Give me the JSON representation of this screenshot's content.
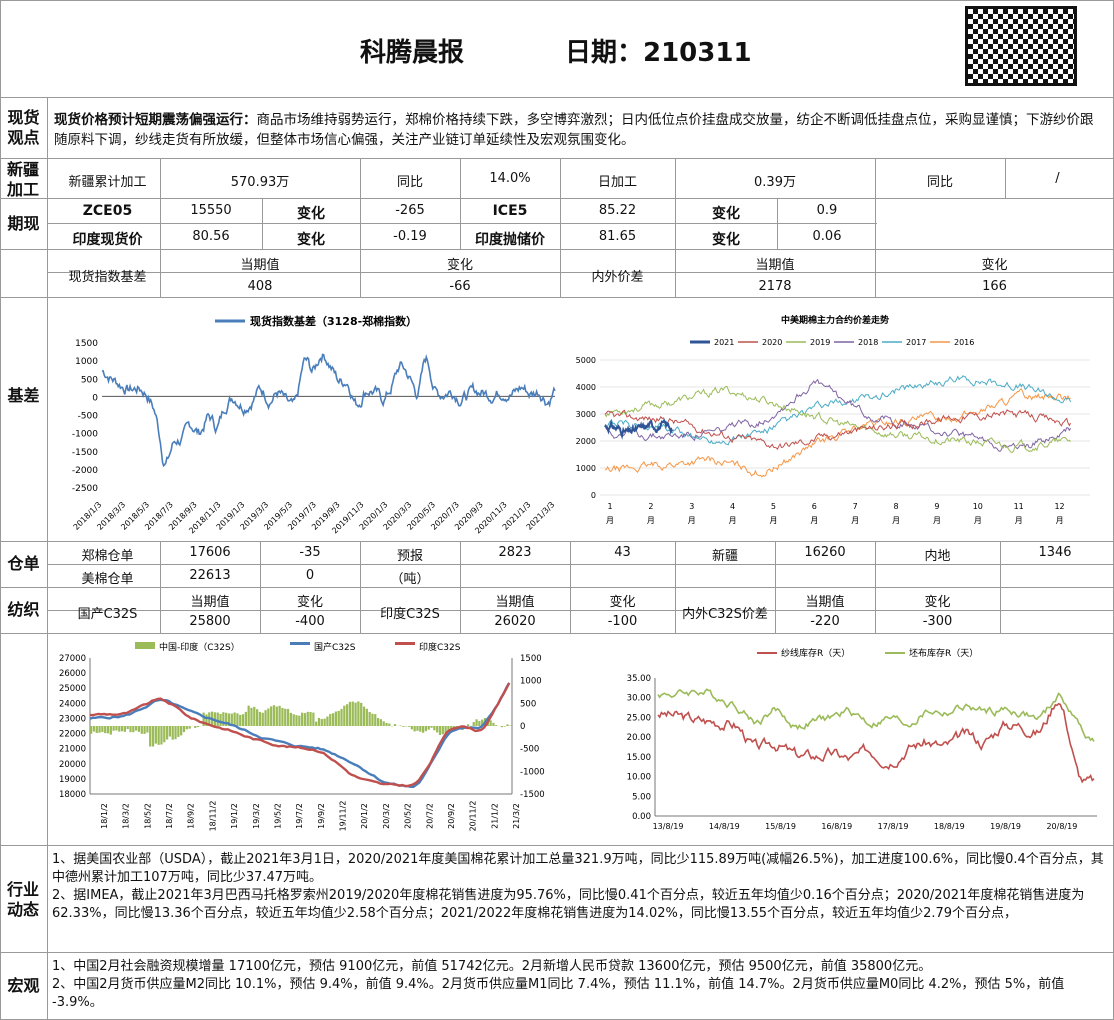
{
  "header": {
    "title": "科腾晨报",
    "date_label": "日期：210311"
  },
  "sections": {
    "spot": "现货观点",
    "xinjiang": "新疆加工",
    "futures": "期现",
    "basis": "基差",
    "warehouse": "仓单",
    "textile": "纺织",
    "industry": "行业动态",
    "macro": "宏观"
  },
  "spot_view": {
    "lead": "现货价格预计短期震荡偏强运行：",
    "body": "商品市场维持弱势运行，郑棉价格持续下跌，多空博弈激烈；日内低位点价挂盘成交放量，纺企不断调低挂盘点位，采购显谨慎；下游纱价跟随原料下调，纱线走货有所放缓，但整体市场信心偏强，关注产业链订单延续性及宏观氛围变化。"
  },
  "xinjiang": {
    "c1": "新疆累计加工",
    "c2": "570.93万",
    "c3": "同比",
    "c4": "14.0%",
    "c5": "日加工",
    "c6": "0.39万",
    "c7": "同比",
    "c8": "/"
  },
  "futures": {
    "r1": [
      "ZCE05",
      "15550",
      "变化",
      "-265",
      "ICE5",
      "85.22",
      "变化",
      "0.9"
    ],
    "r2": [
      "印度现货价",
      "80.56",
      "变化",
      "-0.19",
      "印度抛储价",
      "81.65",
      "变化",
      "0.06"
    ]
  },
  "basis_table": {
    "h1": "现货指数基差",
    "h2": "当期值",
    "h3": "变化",
    "h4": "内外价差",
    "h5": "当期值",
    "h6": "变化",
    "v2": "408",
    "v3": "-66",
    "v5": "2178",
    "v6": "166"
  },
  "chart_data": [
    {
      "type": "line",
      "title": "",
      "legend": [
        "现货指数基差（3128-郑棉指数）"
      ],
      "color": "#4a7ebb",
      "yticks": [
        "1500",
        "1000",
        "500",
        "0",
        "-500",
        "-1000",
        "-1500",
        "-2000",
        "-2500"
      ],
      "ylim": [
        -2500,
        1500
      ],
      "xticks": [
        "2018/1/3",
        "2018/3/3",
        "2018/5/3",
        "2018/7/3",
        "2018/9/3",
        "2018/11/3",
        "2019/1/3",
        "2019/3/3",
        "2019/5/3",
        "2019/7/3",
        "2019/9/3",
        "2019/11/3",
        "2020/1/3",
        "2020/3/3",
        "2020/5/3",
        "2020/7/3",
        "2020/9/3",
        "2020/11/3",
        "2021/1/3",
        "2021/3/3"
      ],
      "y": [
        700,
        450,
        300,
        150,
        250,
        50,
        -600,
        -2200,
        -1100,
        -1200,
        -700,
        -1100,
        -400,
        -1000,
        -50,
        50,
        -300,
        -50,
        300,
        -150,
        200,
        -300,
        -400,
        1300,
        500,
        1400,
        800,
        300,
        500,
        -400,
        300,
        150,
        -200,
        300,
        1000,
        500,
        -100,
        1400,
        -100,
        100,
        200,
        -100,
        100,
        150,
        50,
        100,
        200,
        50,
        300,
        0,
        200,
        -200,
        400
      ]
    },
    {
      "type": "line",
      "title": "中美期棉主力合约价差走势",
      "series_names": [
        "2021",
        "2020",
        "2019",
        "2018",
        "2017",
        "2016"
      ],
      "colors": [
        "#2f5597",
        "#c0504d",
        "#9bbb59",
        "#8064a2",
        "#4bacc6",
        "#f79646"
      ],
      "yticks": [
        "5000",
        "4000",
        "3000",
        "2000",
        "1000",
        "0"
      ],
      "ylim": [
        0,
        5000
      ],
      "xticks": [
        "1月",
        "2月",
        "3月",
        "4月",
        "5月",
        "6月",
        "7月",
        "8月",
        "9月",
        "10月",
        "11月",
        "12月"
      ]
    },
    {
      "type": "line",
      "title": "",
      "legend": [
        "中国-印度（C32S）",
        "国产C32S",
        "印度C32S"
      ],
      "colors": [
        "#9bbb59",
        "#4a7ebb",
        "#c0504d"
      ],
      "yticks_left": [
        "27000",
        "26000",
        "25000",
        "24000",
        "23000",
        "22000",
        "21000",
        "20000",
        "19000",
        "18000"
      ],
      "yticks_right": [
        "1500",
        "1000",
        "500",
        "0",
        "-500",
        "-1000",
        "-1500"
      ],
      "xticks": [
        "18/1/2",
        "18/3/2",
        "18/5/2",
        "18/7/2",
        "18/9/2",
        "18/11/2",
        "19/1/2",
        "19/3/2",
        "19/5/2",
        "19/7/2",
        "19/9/2",
        "19/11/2",
        "20/1/2",
        "20/3/2",
        "20/5/2",
        "20/7/2",
        "20/9/2",
        "20/11/2",
        "21/1/2",
        "21/3/2"
      ]
    },
    {
      "type": "line",
      "title": "",
      "legend": [
        "纱线库存R（天）",
        "坯布库存R（天）"
      ],
      "colors": [
        "#c0504d",
        "#9bbb59"
      ],
      "yticks": [
        "35.00",
        "30.00",
        "25.00",
        "20.00",
        "15.00",
        "10.00",
        "5.00",
        "0.00"
      ],
      "ylim": [
        0,
        35
      ],
      "xticks": [
        "13/8/19",
        "14/8/19",
        "15/8/19",
        "16/8/19",
        "17/8/19",
        "18/8/19",
        "19/8/19",
        "20/8/19"
      ]
    }
  ],
  "warehouse": {
    "r1": [
      "郑棉仓单",
      "17606",
      "-35",
      "预报",
      "2823",
      "43",
      "新疆",
      "16260",
      "内地",
      "1346"
    ],
    "r2": [
      "美棉仓单",
      "22613",
      "0",
      "（吨）"
    ]
  },
  "textile": {
    "c1": "国产C32S",
    "c2": "当期值",
    "c3": "变化",
    "c4": "印度C32S",
    "c5": "当期值",
    "c6": "变化",
    "c7": "内外C32S价差",
    "c8": "当期值",
    "c9": "变化",
    "v2": "25800",
    "v3": "-400",
    "v5": "26020",
    "v6": "-100",
    "v8": "-220",
    "v9": "-300"
  },
  "industry": {
    "p1": "1、据美国农业部（USDA），截止2021年3月1日，2020/2021年度美国棉花累计加工总量321.9万吨，同比少115.89万吨(减幅26.5%)，加工进度100.6%，同比慢0.4个百分点，其中德州累计加工107万吨，同比少37.47万吨。",
    "p2": "2、据IMEA，截止2021年3月巴西马托格罗索州2019/2020年度棉花销售进度为95.76%，同比慢0.41个百分点，较近五年均值少0.16个百分点；2020/2021年度棉花销售进度为62.33%，同比慢13.36个百分点，较近五年均值少2.58个百分点；2021/2022年度棉花销售进度为14.02%，同比慢13.55个百分点，较近五年均值少2.79个百分点，"
  },
  "macro": {
    "p1": "1、中国2月社会融资规模增量 17100亿元，预估 9100亿元，前值 51742亿元。2月新增人民币贷款 13600亿元，预估 9500亿元，前值 35800亿元。",
    "p2": "2、中国2月货币供应量M2同比 10.1%，预估 9.4%，前值 9.4%。2月货币供应量M1同比 7.4%，预估 11.1%，前值 14.7%。2月货币供应量M0同比 4.2%，预估 5%，前值 -3.9%。"
  }
}
